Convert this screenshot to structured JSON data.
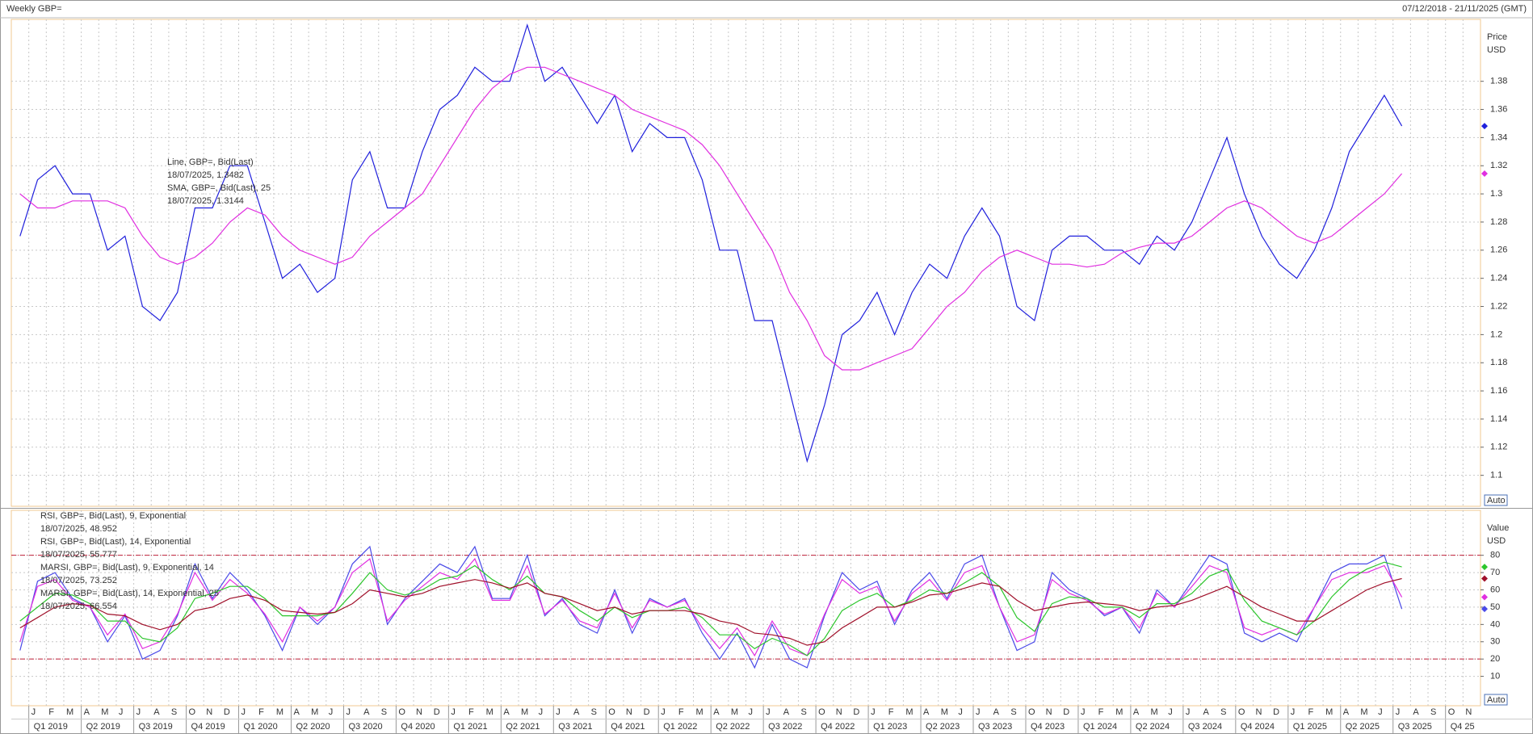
{
  "header": {
    "title": "Weekly GBP=",
    "range": "07/12/2018 - 21/11/2025 (GMT)"
  },
  "chart_data": [
    {
      "type": "line",
      "axis_title": "Price",
      "axis_unit": "USD",
      "auto_label": "Auto",
      "ylim": [
        1.078,
        1.424
      ],
      "yticks": [
        1.1,
        1.12,
        1.14,
        1.16,
        1.18,
        1.2,
        1.22,
        1.24,
        1.26,
        1.28,
        1.3,
        1.32,
        1.34,
        1.36,
        1.38
      ],
      "grid": true,
      "series": [
        {
          "name": "Line, GBP=, Bid(Last)",
          "annotation": "18/07/2025, 1.3482",
          "color": "#2020dc",
          "values": [
            1.27,
            1.31,
            1.32,
            1.3,
            1.3,
            1.26,
            1.27,
            1.22,
            1.21,
            1.23,
            1.29,
            1.29,
            1.32,
            1.32,
            1.28,
            1.24,
            1.25,
            1.23,
            1.24,
            1.31,
            1.33,
            1.29,
            1.29,
            1.33,
            1.36,
            1.37,
            1.39,
            1.38,
            1.38,
            1.42,
            1.38,
            1.39,
            1.37,
            1.35,
            1.37,
            1.33,
            1.35,
            1.34,
            1.34,
            1.31,
            1.26,
            1.26,
            1.21,
            1.21,
            1.16,
            1.11,
            1.15,
            1.2,
            1.21,
            1.23,
            1.2,
            1.23,
            1.25,
            1.24,
            1.27,
            1.29,
            1.27,
            1.22,
            1.21,
            1.26,
            1.27,
            1.27,
            1.26,
            1.26,
            1.25,
            1.27,
            1.26,
            1.28,
            1.31,
            1.34,
            1.3,
            1.27,
            1.25,
            1.24,
            1.26,
            1.29,
            1.33,
            1.35,
            1.37,
            1.3482,
            null,
            null,
            null,
            null
          ]
        },
        {
          "name": "SMA, GBP=, Bid(Last), 25",
          "annotation": "18/07/2025, 1.3144",
          "color": "#e02ee0",
          "values": [
            1.3,
            1.29,
            1.29,
            1.295,
            1.295,
            1.295,
            1.29,
            1.27,
            1.255,
            1.25,
            1.255,
            1.265,
            1.28,
            1.29,
            1.285,
            1.27,
            1.26,
            1.255,
            1.25,
            1.255,
            1.27,
            1.28,
            1.29,
            1.3,
            1.32,
            1.34,
            1.36,
            1.375,
            1.385,
            1.39,
            1.39,
            1.385,
            1.38,
            1.375,
            1.37,
            1.36,
            1.355,
            1.35,
            1.345,
            1.335,
            1.32,
            1.3,
            1.28,
            1.26,
            1.23,
            1.21,
            1.185,
            1.175,
            1.175,
            1.18,
            1.185,
            1.19,
            1.205,
            1.22,
            1.23,
            1.245,
            1.255,
            1.26,
            1.255,
            1.25,
            1.25,
            1.248,
            1.25,
            1.258,
            1.262,
            1.265,
            1.265,
            1.27,
            1.28,
            1.29,
            1.295,
            1.29,
            1.28,
            1.27,
            1.265,
            1.27,
            1.28,
            1.29,
            1.3,
            1.3144,
            null,
            null,
            null,
            null
          ]
        }
      ]
    },
    {
      "type": "line",
      "axis_title": "Value",
      "axis_unit": "USD",
      "auto_label": "Auto",
      "ylim": [
        -7,
        106
      ],
      "yticks": [
        10,
        20,
        30,
        40,
        50,
        60,
        70,
        80
      ],
      "grid": true,
      "ref_lines": [
        20,
        80
      ],
      "categories": [
        null,
        "J",
        "F",
        "M",
        "A",
        "M",
        "J",
        "J",
        "A",
        "S",
        "O",
        "N",
        "D",
        "J",
        "F",
        "M",
        "A",
        "M",
        "J",
        "J",
        "A",
        "S",
        "O",
        "N",
        "D",
        "J",
        "F",
        "M",
        "A",
        "M",
        "J",
        "J",
        "A",
        "S",
        "O",
        "N",
        "D",
        "J",
        "F",
        "M",
        "A",
        "M",
        "J",
        "J",
        "A",
        "S",
        "O",
        "N",
        "D",
        "J",
        "F",
        "M",
        "A",
        "M",
        "J",
        "J",
        "A",
        "S",
        "O",
        "N",
        "D",
        "J",
        "F",
        "M",
        "A",
        "M",
        "J",
        "J",
        "A",
        "S",
        "O",
        "N",
        "D",
        "J",
        "F",
        "M",
        "A",
        "M",
        "J",
        "J",
        "A",
        "S",
        "O",
        "N"
      ],
      "quarters": [
        "Q1 2019",
        "Q2 2019",
        "Q3 2019",
        "Q4 2019",
        "Q1 2020",
        "Q2 2020",
        "Q3 2020",
        "Q4 2020",
        "Q1 2021",
        "Q2 2021",
        "Q3 2021",
        "Q4 2021",
        "Q1 2022",
        "Q2 2022",
        "Q3 2022",
        "Q4 2022",
        "Q1 2023",
        "Q2 2023",
        "Q3 2023",
        "Q4 2023",
        "Q1 2024",
        "Q2 2024",
        "Q3 2024",
        "Q4 2024",
        "Q1 2025",
        "Q2 2025",
        "Q3 2025",
        "Q4 25"
      ],
      "series": [
        {
          "name": "RSI, GBP=, Bid(Last),  9, Exponential",
          "annotation": "18/07/2025, 48.952",
          "color": "#4a4ae8",
          "values": [
            25,
            65,
            70,
            55,
            50,
            30,
            45,
            20,
            25,
            45,
            75,
            55,
            70,
            60,
            45,
            25,
            50,
            40,
            50,
            75,
            85,
            40,
            55,
            65,
            75,
            70,
            85,
            55,
            55,
            80,
            45,
            55,
            40,
            35,
            60,
            35,
            55,
            50,
            55,
            35,
            20,
            35,
            15,
            40,
            20,
            15,
            45,
            70,
            60,
            65,
            40,
            60,
            70,
            55,
            75,
            80,
            50,
            25,
            30,
            70,
            60,
            55,
            45,
            50,
            35,
            60,
            50,
            65,
            80,
            75,
            35,
            30,
            35,
            30,
            50,
            70,
            75,
            75,
            80,
            48.952,
            null,
            null,
            null,
            null
          ]
        },
        {
          "name": "RSI, GBP=, Bid(Last),  14, Exponential",
          "annotation": "18/07/2025, 55.777",
          "color": "#e02ee0",
          "values": [
            30,
            62,
            66,
            54,
            50,
            34,
            46,
            26,
            30,
            46,
            70,
            54,
            66,
            58,
            46,
            30,
            50,
            42,
            50,
            70,
            78,
            42,
            54,
            62,
            70,
            66,
            78,
            54,
            54,
            74,
            46,
            54,
            42,
            38,
            58,
            38,
            54,
            50,
            54,
            38,
            26,
            38,
            22,
            42,
            26,
            22,
            46,
            66,
            58,
            62,
            42,
            58,
            66,
            54,
            70,
            74,
            50,
            30,
            34,
            66,
            58,
            54,
            46,
            50,
            38,
            58,
            50,
            62,
            74,
            70,
            38,
            34,
            38,
            34,
            50,
            66,
            70,
            70,
            74,
            55.777,
            null,
            null,
            null,
            null
          ]
        },
        {
          "name": "MARSI, GBP=, Bid(Last),  9, Exponential, 14",
          "annotation": "18/07/2025, 73.252",
          "color": "#2cc62c",
          "values": [
            42,
            50,
            58,
            57,
            52,
            42,
            42,
            32,
            30,
            38,
            55,
            58,
            62,
            62,
            55,
            45,
            45,
            45,
            47,
            58,
            70,
            60,
            57,
            60,
            66,
            68,
            74,
            66,
            60,
            68,
            58,
            56,
            48,
            42,
            50,
            44,
            48,
            48,
            50,
            44,
            34,
            34,
            26,
            32,
            28,
            22,
            32,
            48,
            54,
            58,
            50,
            54,
            60,
            58,
            64,
            70,
            62,
            44,
            36,
            52,
            56,
            55,
            50,
            50,
            44,
            52,
            52,
            58,
            68,
            72,
            54,
            42,
            38,
            34,
            42,
            56,
            66,
            72,
            76,
            73.252,
            null,
            null,
            null,
            null
          ]
        },
        {
          "name": "MARSI, GBP=, Bid(Last),  14, Exponential, 25",
          "annotation": "18/07/2025, 66.554",
          "color": "#a0102a",
          "values": [
            38,
            44,
            50,
            52,
            51,
            46,
            45,
            40,
            37,
            40,
            48,
            50,
            55,
            57,
            54,
            48,
            47,
            46,
            47,
            52,
            60,
            58,
            56,
            58,
            62,
            64,
            66,
            64,
            61,
            64,
            58,
            56,
            52,
            48,
            50,
            46,
            48,
            48,
            48,
            46,
            42,
            40,
            35,
            34,
            32,
            28,
            30,
            38,
            44,
            50,
            50,
            53,
            57,
            58,
            61,
            64,
            62,
            54,
            48,
            50,
            52,
            53,
            52,
            51,
            48,
            50,
            51,
            54,
            58,
            62,
            56,
            50,
            46,
            42,
            42,
            48,
            54,
            60,
            64,
            66.554,
            null,
            null,
            null,
            null
          ]
        }
      ]
    }
  ]
}
